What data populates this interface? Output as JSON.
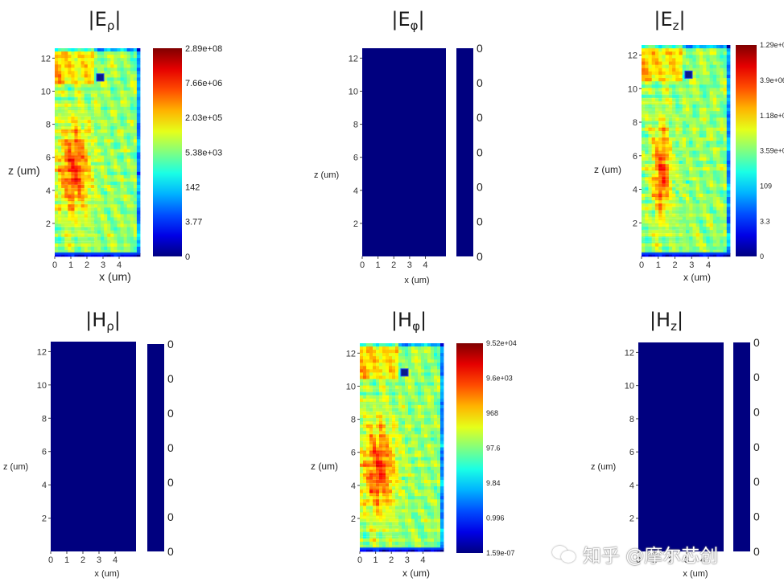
{
  "chart_data": [
    {
      "type": "heatmap",
      "title": "|Eρ|",
      "title_main": "E",
      "title_sub": "ρ",
      "xlabel": "x (um)",
      "ylabel": "z (um)",
      "xlim": [
        0,
        5.3
      ],
      "ylim": [
        0,
        12.6
      ],
      "xticks": [
        "0",
        "1",
        "2",
        "3",
        "4"
      ],
      "yticks": [
        "2",
        "4",
        "6",
        "8",
        "10",
        "12"
      ],
      "colorbar": [
        "2.89e+08",
        "7.66e+06",
        "2.03e+05",
        "5.38e+03",
        "142",
        "3.77",
        "0"
      ],
      "colormap": "jet",
      "field": "structured",
      "hot_y": 5.3,
      "hot_w": 1.0
    },
    {
      "type": "heatmap",
      "title": "|Eφ|",
      "title_main": "E",
      "title_sub": "φ",
      "xlabel": "x (um)",
      "ylabel": "z (um)",
      "xlim": [
        0,
        5.3
      ],
      "ylim": [
        0,
        12.6
      ],
      "xticks": [
        "0",
        "1",
        "2",
        "3",
        "4"
      ],
      "yticks": [
        "2",
        "4",
        "6",
        "8",
        "10",
        "12"
      ],
      "colorbar": [
        "0",
        "0",
        "0",
        "0",
        "0",
        "0",
        "0"
      ],
      "colormap": "jet",
      "field": "uniform",
      "uniform_color": "#00007f"
    },
    {
      "type": "heatmap",
      "title": "|Ez|",
      "title_main": "E",
      "title_sub": "z",
      "xlabel": "x (um)",
      "ylabel": "z (um)",
      "xlim": [
        0,
        5.3
      ],
      "ylim": [
        0,
        12.6
      ],
      "xticks": [
        "0",
        "1",
        "2",
        "3",
        "4"
      ],
      "yticks": [
        "2",
        "4",
        "6",
        "8",
        "10",
        "12"
      ],
      "colorbar": [
        "1.29e+08",
        "3.9e+06",
        "1.18e+05",
        "3.59e+03",
        "109",
        "3.3",
        "0"
      ],
      "colormap": "jet",
      "field": "structured",
      "hot_y": 5.0,
      "hot_w": 0.55
    },
    {
      "type": "heatmap",
      "title": "|Hρ|",
      "title_main": "H",
      "title_sub": "ρ",
      "xlabel": "x (um)",
      "ylabel": "z (um)",
      "xlim": [
        0,
        5.3
      ],
      "ylim": [
        0,
        12.6
      ],
      "xticks": [
        "0",
        "1",
        "2",
        "3",
        "4"
      ],
      "yticks": [
        "2",
        "4",
        "6",
        "8",
        "10",
        "12"
      ],
      "colorbar": [
        "0",
        "0",
        "0",
        "0",
        "0",
        "0",
        "0"
      ],
      "colormap": "jet",
      "field": "uniform",
      "uniform_color": "#00007f"
    },
    {
      "type": "heatmap",
      "title": "|Hφ|",
      "title_main": "H",
      "title_sub": "φ",
      "xlabel": "x (um)",
      "ylabel": "z (um)",
      "xlim": [
        0,
        5.3
      ],
      "ylim": [
        0,
        12.6
      ],
      "xticks": [
        "0",
        "1",
        "2",
        "3",
        "4"
      ],
      "yticks": [
        "2",
        "4",
        "6",
        "8",
        "10",
        "12"
      ],
      "colorbar": [
        "9.52e+04",
        "9.6e+03",
        "968",
        "97.6",
        "9.84",
        "0.996",
        "1.59e-07"
      ],
      "colormap": "jet",
      "field": "structured",
      "hot_y": 5.0,
      "hot_w": 1.1
    },
    {
      "type": "heatmap",
      "title": "|Hz|",
      "title_main": "H",
      "title_sub": "z",
      "xlabel": "x (um)",
      "ylabel": "z (um)",
      "xlim": [
        0,
        5.3
      ],
      "ylim": [
        0,
        12.6
      ],
      "xticks": [
        "0",
        "1",
        "2",
        "3",
        "4"
      ],
      "yticks": [
        "2",
        "4",
        "6",
        "8",
        "10",
        "12"
      ],
      "colorbar": [
        "0",
        "0",
        "0",
        "0",
        "0",
        "0",
        "0"
      ],
      "colormap": "jet",
      "field": "uniform",
      "uniform_color": "#00007f"
    }
  ],
  "watermark": {
    "text": "知乎 @摩尔芯创",
    "icon": "wechat-bubble-icon"
  }
}
